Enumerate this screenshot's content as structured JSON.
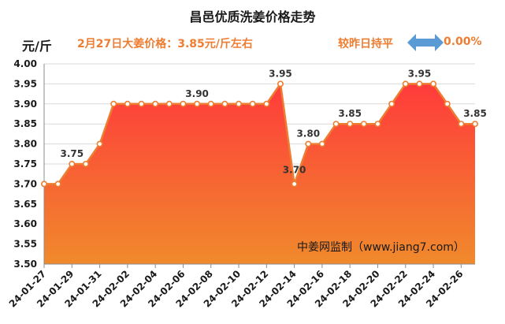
{
  "header": {
    "title": "昌邑优质洗姜价格走势",
    "unit": "元/斤",
    "headline": "2月27日大姜价格：3.85元/斤左右",
    "compare_label": "较昨日持平",
    "change_pct": "0.00%",
    "arrow_icon": "double-arrow-icon"
  },
  "watermark": "中姜网监制（www.jiang7.com）",
  "colors": {
    "line": "#ed7d31",
    "fill_top": "#ff3b3b",
    "fill_bottom": "#f08a2c",
    "arrow": "#5b9bd5",
    "accent_text": "#ed7d31"
  },
  "chart_data": {
    "type": "area",
    "title": "昌邑优质洗姜价格走势",
    "ylabel": "元/斤",
    "xlabel": "",
    "ylim": [
      3.5,
      4.0
    ],
    "yticks": [
      "4.00",
      "3.95",
      "3.90",
      "3.85",
      "3.80",
      "3.75",
      "3.70",
      "3.65",
      "3.60",
      "3.55",
      "3.50"
    ],
    "x": [
      "24-01-27",
      "24-01-28",
      "24-01-29",
      "24-01-30",
      "24-01-31",
      "24-02-01",
      "24-02-02",
      "24-02-03",
      "24-02-04",
      "24-02-05",
      "24-02-06",
      "24-02-07",
      "24-02-08",
      "24-02-09",
      "24-02-10",
      "24-02-11",
      "24-02-12",
      "24-02-13",
      "24-02-14",
      "24-02-15",
      "24-02-16",
      "24-02-17",
      "24-02-18",
      "24-02-19",
      "24-02-20",
      "24-02-21",
      "24-02-22",
      "24-02-23",
      "24-02-24",
      "24-02-25",
      "24-02-26",
      "24-02-27"
    ],
    "xticks": [
      "24-01-27",
      "24-01-29",
      "24-01-31",
      "24-02-02",
      "24-02-04",
      "24-02-06",
      "24-02-08",
      "24-02-10",
      "24-02-12",
      "24-02-14",
      "24-02-16",
      "24-02-18",
      "24-02-20",
      "24-02-22",
      "24-02-24",
      "24-02-26"
    ],
    "values": [
      3.7,
      3.7,
      3.75,
      3.75,
      3.8,
      3.9,
      3.9,
      3.9,
      3.9,
      3.9,
      3.9,
      3.9,
      3.9,
      3.9,
      3.9,
      3.9,
      3.9,
      3.95,
      3.7,
      3.8,
      3.8,
      3.85,
      3.85,
      3.85,
      3.85,
      3.9,
      3.95,
      3.95,
      3.95,
      3.9,
      3.85,
      3.85
    ],
    "annotations": [
      {
        "index": 2,
        "label": "3.75"
      },
      {
        "index": 11,
        "label": "3.90"
      },
      {
        "index": 17,
        "label": "3.95"
      },
      {
        "index": 18,
        "label": "3.70"
      },
      {
        "index": 19,
        "label": "3.80"
      },
      {
        "index": 22,
        "label": "3.85"
      },
      {
        "index": 27,
        "label": "3.95"
      },
      {
        "index": 31,
        "label": "3.85"
      }
    ],
    "grid": true
  }
}
